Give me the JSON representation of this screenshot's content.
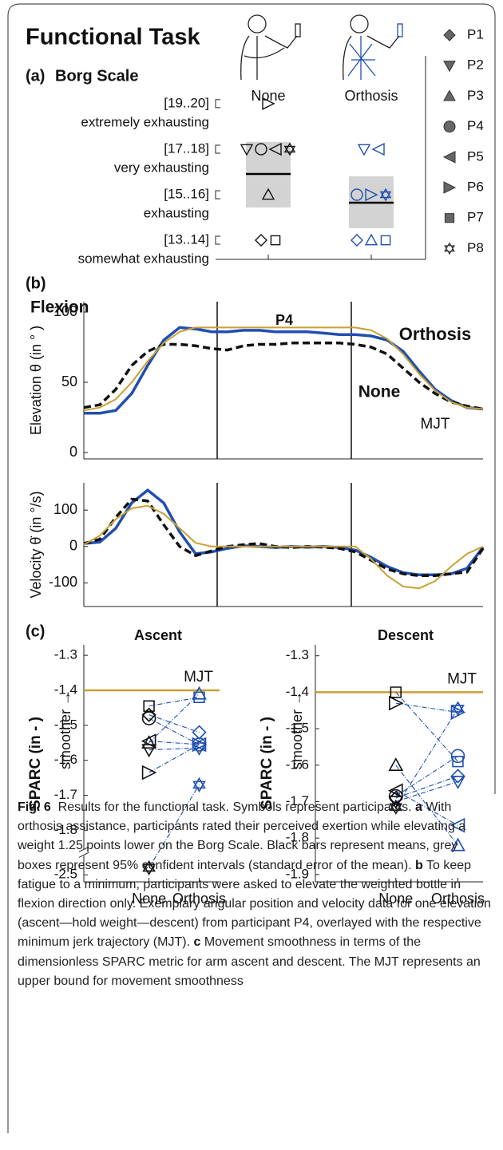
{
  "figure_title": "Functional Task",
  "legend": [
    {
      "name": "P1",
      "marker": "diamond"
    },
    {
      "name": "P2",
      "marker": "triangle-down"
    },
    {
      "name": "P3",
      "marker": "triangle-up"
    },
    {
      "name": "P4",
      "marker": "circle"
    },
    {
      "name": "P5",
      "marker": "triangle-left"
    },
    {
      "name": "P6",
      "marker": "triangle-right"
    },
    {
      "name": "P7",
      "marker": "square"
    },
    {
      "name": "P8",
      "marker": "hexagram"
    }
  ],
  "chart_data": [
    {
      "type": "scatter",
      "panel": "(a)",
      "title": "Borg Scale",
      "categories": [
        "None",
        "Orthosis"
      ],
      "category_colors": [
        "#111111",
        "#1f4fb0"
      ],
      "ylim": [
        12.66,
        21.6
      ],
      "yticks": [
        {
          "value": 19.5,
          "label": "[19..20]"
        },
        {
          "value": 17.5,
          "label": "[17..18]"
        },
        {
          "value": 15.5,
          "label": "[15..16]"
        },
        {
          "value": 13.5,
          "label": "[13..14]"
        }
      ],
      "ytick_descriptions": [
        "extremely exhausting",
        "very exhausting",
        "exhausting",
        "somewhat exhausting"
      ],
      "series": [
        {
          "values": [
            13.5,
            13.5
          ]
        },
        {
          "values": [
            17.5,
            17.5
          ]
        },
        {
          "values": [
            15.5,
            13.5
          ]
        },
        {
          "values": [
            17.5,
            15.5
          ]
        },
        {
          "values": [
            17.5,
            17.5
          ]
        },
        {
          "values": [
            19.5,
            15.5
          ]
        },
        {
          "values": [
            13.5,
            13.5
          ]
        },
        {
          "values": [
            17.5,
            15.5
          ]
        }
      ],
      "means": [
        16.41,
        15.15
      ],
      "mean_color": "#000000",
      "ci": [
        [
          14.94,
          17.82
        ],
        [
          14.03,
          16.31
        ]
      ],
      "ci_color": "#d3d3d3"
    },
    {
      "type": "line",
      "panel": "(b)",
      "subtitle": "Flexion",
      "title": "P4",
      "ylabel": "Elevation θ (in ° )",
      "ylim": [
        -4.5,
        107.4
      ],
      "yticks": [
        0,
        50,
        100
      ],
      "series": [
        {
          "name": "Orthosis",
          "color": "#1f4fb0",
          "dash": false,
          "values": [
            28,
            28,
            30,
            42,
            62,
            80,
            89,
            88,
            86,
            86,
            87,
            87,
            86,
            86,
            86,
            85,
            84,
            84,
            83,
            80,
            72,
            58,
            45,
            37,
            32,
            31
          ]
        },
        {
          "name": "None",
          "color": "#111111",
          "dash": true,
          "values": [
            32,
            34,
            45,
            62,
            72,
            77,
            77,
            76,
            74,
            73,
            76,
            77,
            77,
            78,
            78,
            78,
            78,
            77,
            75,
            70,
            60,
            50,
            42,
            36,
            33,
            31
          ]
        },
        {
          "name": "MJT",
          "color": "#c9a032",
          "dash": false,
          "values": [
            30,
            32,
            38,
            50,
            65,
            78,
            86,
            89,
            89,
            89,
            89,
            89,
            89,
            89,
            89,
            89,
            89,
            89,
            87,
            81,
            70,
            56,
            44,
            36,
            32,
            31
          ]
        }
      ]
    },
    {
      "type": "line",
      "ylabel": "Velocity θ̇ (in °/s)",
      "ylim": [
        -165,
        175
      ],
      "yticks": [
        -100,
        0,
        100
      ],
      "series": [
        {
          "color": "#1f4fb0",
          "dash": false,
          "values": [
            8,
            12,
            50,
            120,
            155,
            120,
            40,
            -20,
            -15,
            -5,
            2,
            0,
            -3,
            0,
            -2,
            0,
            -3,
            -10,
            -30,
            -55,
            -72,
            -78,
            -78,
            -75,
            -60,
            -2
          ]
        },
        {
          "color": "#111111",
          "dash": true,
          "values": [
            8,
            20,
            80,
            130,
            125,
            60,
            0,
            -25,
            -12,
            0,
            5,
            8,
            0,
            -3,
            0,
            -2,
            -5,
            -15,
            -38,
            -62,
            -75,
            -80,
            -80,
            -75,
            -70,
            -5
          ]
        },
        {
          "color": "#c9a032",
          "dash": false,
          "values": [
            5,
            30,
            75,
            105,
            112,
            90,
            50,
            10,
            0,
            0,
            0,
            0,
            0,
            0,
            0,
            0,
            0,
            0,
            -35,
            -80,
            -110,
            -115,
            -95,
            -55,
            -20,
            0
          ]
        }
      ]
    },
    {
      "type": "paired",
      "panel": "(c)",
      "title": "Ascent",
      "ylabel": "SPARC (in - )",
      "annotation": "smoother →",
      "categories": [
        "None",
        "Orthosis"
      ],
      "category_colors": [
        "#111111",
        "#1f4fb0"
      ],
      "ylim": [
        -2.52,
        -1.27
      ],
      "y_break": [
        -2.45,
        -1.85
      ],
      "yticks": [
        -1.3,
        -1.4,
        -1.5,
        -1.6,
        -1.7,
        -1.8,
        -2.5
      ],
      "reference": {
        "name": "MJT",
        "value": -1.4,
        "color": "#c9a032"
      },
      "series": [
        {
          "values": [
            -1.47,
            -1.52
          ]
        },
        {
          "values": [
            -1.57,
            -1.565
          ]
        },
        {
          "values": [
            -1.55,
            -1.41
          ]
        },
        {
          "values": [
            -1.48,
            -1.555
          ]
        },
        {
          "values": [
            -1.545,
            -1.555
          ]
        },
        {
          "values": [
            -1.635,
            -1.555
          ]
        },
        {
          "values": [
            -1.445,
            -1.42
          ]
        },
        {
          "values": [
            -2.48,
            -1.67
          ]
        }
      ]
    },
    {
      "type": "paired",
      "title": "Descent",
      "ylabel": "SPARC (in - )",
      "annotation": "smoother →",
      "categories": [
        "None",
        "Orthosis"
      ],
      "category_colors": [
        "#111111",
        "#1f4fb0"
      ],
      "ylim": [
        -1.92,
        -1.27
      ],
      "yticks": [
        -1.3,
        -1.4,
        -1.5,
        -1.6,
        -1.7,
        -1.8,
        -1.9
      ],
      "reference": {
        "name": "MJT",
        "value": -1.4,
        "color": "#c9a032"
      },
      "series": [
        {
          "values": [
            -1.69,
            -1.63
          ]
        },
        {
          "values": [
            -1.7,
            -1.645
          ]
        },
        {
          "values": [
            -1.6,
            -1.82
          ]
        },
        {
          "values": [
            -1.685,
            -1.575
          ]
        },
        {
          "values": [
            -1.67,
            -1.765
          ]
        },
        {
          "values": [
            -1.43,
            -1.455
          ]
        },
        {
          "values": [
            -1.4,
            -1.59
          ]
        },
        {
          "values": [
            -1.715,
            -1.445
          ]
        }
      ]
    }
  ],
  "caption": {
    "label": "Fig. 6",
    "text": "Results for the functional task. Symbols represent participants.",
    "parts": [
      {
        "label": "a",
        "text": "With orthosis assistance, participants rated their perceived exertion while elevating a weight 1.25 points lower on the Borg Scale. Black bars represent means, grey boxes represent 95% confident intervals (standard error of the mean)."
      },
      {
        "label": "b",
        "text": "To keep fatigue to a minimum, participants were asked to elevate the weighted bottle in flexion direction only. Exemplary angular position and velocity data for one elevation (ascent—hold weight—descent) from participant P4, overlayed with the respective minimum jerk trajectory (MJT)."
      },
      {
        "label": "c",
        "text": "Movement smoothness in terms of the dimensionless SPARC metric for arm ascent and descent. The MJT represents an upper bound for movement smoothness"
      }
    ]
  }
}
